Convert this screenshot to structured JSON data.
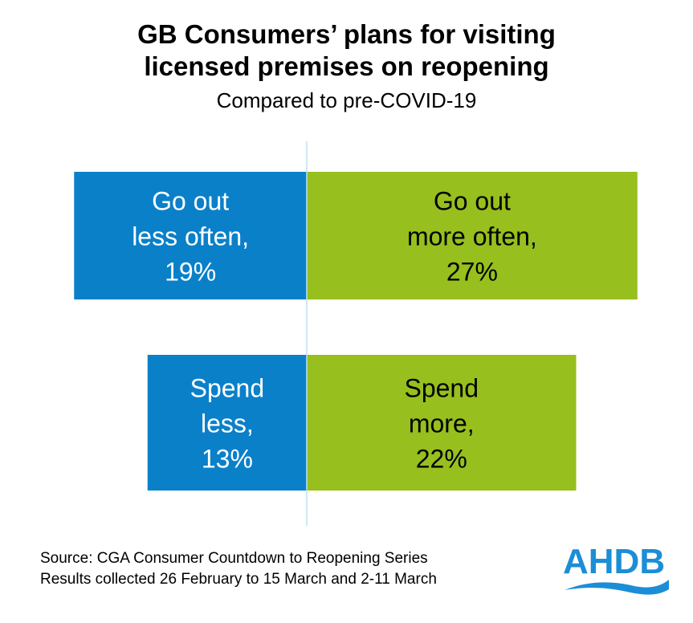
{
  "title_line1": "GB Consumers’ plans for visiting",
  "title_line2": "licensed premises on reopening",
  "subtitle": "Compared to pre-COVID-19",
  "chart_data": {
    "type": "bar",
    "orientation": "horizontal-diverging",
    "title": "GB Consumers’ plans for visiting licensed premises on reopening",
    "subtitle": "Compared to pre-COVID-19",
    "categories": [
      "Go out",
      "Spend"
    ],
    "series": [
      {
        "name": "Less",
        "color": "#0A80C9",
        "values": [
          -19,
          -13
        ],
        "labels": [
          [
            "Go out",
            "less often,",
            "19%"
          ],
          [
            "Spend",
            "less,",
            "13%"
          ]
        ]
      },
      {
        "name": "More",
        "color": "#97BF1E",
        "values": [
          27,
          22
        ],
        "labels": [
          [
            "Go out",
            "more often,",
            "27%"
          ],
          [
            "Spend",
            "more,",
            "22%"
          ]
        ]
      }
    ],
    "axis_color": "#BFE0F2",
    "unit": "%"
  },
  "source_line1": "Source: CGA Consumer Countdown  to Reopening Series",
  "source_line2": "Results collected 26 February to 15 March and 2-11 March",
  "logo_text": "AHDB",
  "logo_color": "#1B8ED6"
}
